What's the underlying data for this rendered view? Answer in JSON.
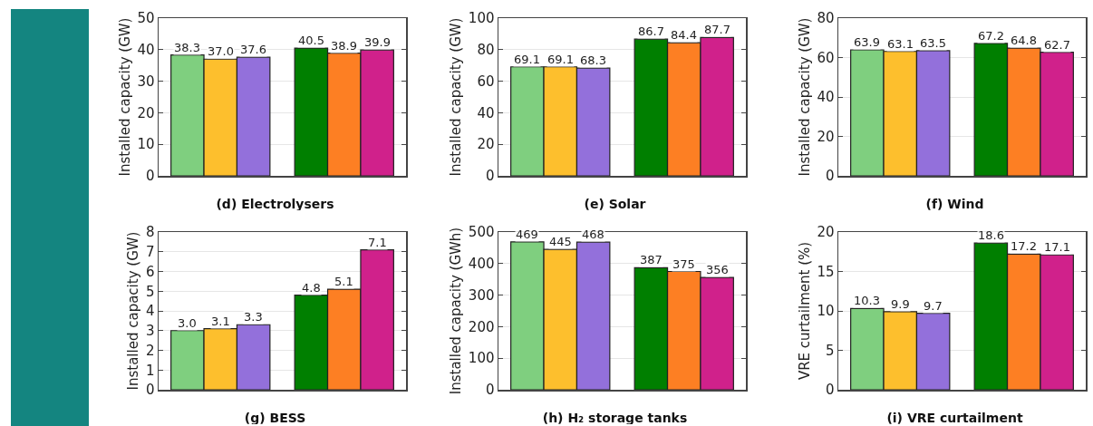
{
  "chart_data": [
    {
      "type": "bar",
      "title": "(d) Electrolysers",
      "ylabel": "Installed capacity (GW)",
      "categories": [
        null,
        null
      ],
      "ylim": [
        0,
        50
      ],
      "yticks": [
        0,
        10,
        20,
        30,
        40,
        50
      ],
      "grid": "y",
      "tick_labels": "y",
      "series": [
        {
          "colors": [
            "#7fcf7f",
            "#007f00"
          ],
          "values": [
            38.3,
            40.5
          ],
          "value_labels": [
            "38.3",
            "40.5"
          ]
        },
        {
          "colors": [
            "#fdbf2d",
            "#fd7f23"
          ],
          "values": [
            37.0,
            38.9
          ],
          "value_labels": [
            "37.0",
            "38.9"
          ]
        },
        {
          "colors": [
            "#9370db",
            "#d0218b"
          ],
          "values": [
            37.6,
            39.9
          ],
          "value_labels": [
            "37.6",
            "39.9"
          ]
        }
      ]
    },
    {
      "type": "bar",
      "title": "(e) Solar",
      "ylabel": "Installed capacity (GW)",
      "categories": [
        null,
        null
      ],
      "ylim": [
        0,
        100
      ],
      "yticks": [
        0,
        20,
        40,
        60,
        80,
        100
      ],
      "grid": "y",
      "tick_labels": "y",
      "series": [
        {
          "colors": [
            "#7fcf7f",
            "#007f00"
          ],
          "values": [
            69.1,
            86.7
          ],
          "value_labels": [
            "69.1",
            "86.7"
          ]
        },
        {
          "colors": [
            "#fdbf2d",
            "#fd7f23"
          ],
          "values": [
            69.1,
            84.4
          ],
          "value_labels": [
            "69.1",
            "84.4"
          ]
        },
        {
          "colors": [
            "#9370db",
            "#d0218b"
          ],
          "values": [
            68.3,
            87.7
          ],
          "value_labels": [
            "68.3",
            "87.7"
          ]
        }
      ]
    },
    {
      "type": "bar",
      "title": "(f) Wind",
      "ylabel": "Installed capacity (GW)",
      "categories": [
        null,
        null
      ],
      "ylim": [
        0,
        80
      ],
      "yticks": [
        0,
        20,
        40,
        60,
        80
      ],
      "grid": "y",
      "tick_labels": "y",
      "series": [
        {
          "colors": [
            "#7fcf7f",
            "#007f00"
          ],
          "values": [
            63.9,
            67.2
          ],
          "value_labels": [
            "63.9",
            "67.2"
          ]
        },
        {
          "colors": [
            "#fdbf2d",
            "#fd7f23"
          ],
          "values": [
            63.1,
            64.8
          ],
          "value_labels": [
            "63.1",
            "64.8"
          ]
        },
        {
          "colors": [
            "#9370db",
            "#d0218b"
          ],
          "values": [
            63.5,
            62.7
          ],
          "value_labels": [
            "63.5",
            "62.7"
          ]
        }
      ]
    },
    {
      "type": "bar",
      "title": "(g) BESS",
      "ylabel": "Installed capacity (GW)",
      "categories": [
        null,
        null
      ],
      "ylim": [
        0,
        8
      ],
      "yticks": [
        0,
        1,
        2,
        3,
        4,
        5,
        6,
        7,
        8
      ],
      "grid": "y",
      "tick_labels": "y",
      "series": [
        {
          "colors": [
            "#7fcf7f",
            "#007f00"
          ],
          "values": [
            3.0,
            4.8
          ],
          "value_labels": [
            "3.0",
            "4.8"
          ]
        },
        {
          "colors": [
            "#fdbf2d",
            "#fd7f23"
          ],
          "values": [
            3.1,
            5.1
          ],
          "value_labels": [
            "3.1",
            "5.1"
          ]
        },
        {
          "colors": [
            "#9370db",
            "#d0218b"
          ],
          "values": [
            3.3,
            7.1
          ],
          "value_labels": [
            "3.3",
            "7.1"
          ]
        }
      ]
    },
    {
      "type": "bar",
      "title": "(h) H₂ storage tanks",
      "ylabel": "Installed capacity (GWh)",
      "categories": [
        null,
        null
      ],
      "ylim": [
        0,
        500
      ],
      "yticks": [
        0,
        100,
        200,
        300,
        400,
        500
      ],
      "grid": "y",
      "tick_labels": "y",
      "series": [
        {
          "colors": [
            "#7fcf7f",
            "#007f00"
          ],
          "values": [
            469,
            387
          ],
          "value_labels": [
            "469",
            "387"
          ]
        },
        {
          "colors": [
            "#fdbf2d",
            "#fd7f23"
          ],
          "values": [
            445,
            375
          ],
          "value_labels": [
            "445",
            "375"
          ]
        },
        {
          "colors": [
            "#9370db",
            "#d0218b"
          ],
          "values": [
            468,
            356
          ],
          "value_labels": [
            "468",
            "356"
          ]
        }
      ]
    },
    {
      "type": "bar",
      "title": "(i) VRE curtailment",
      "ylabel": "VRE curtailment (%)",
      "categories": [
        null,
        null
      ],
      "ylim": [
        0,
        20
      ],
      "yticks": [
        0,
        5,
        10,
        15,
        20
      ],
      "grid": "y",
      "tick_labels": "y",
      "series": [
        {
          "colors": [
            "#7fcf7f",
            "#007f00"
          ],
          "values": [
            10.3,
            18.6
          ],
          "value_labels": [
            "10.3",
            "18.6"
          ]
        },
        {
          "colors": [
            "#fdbf2d",
            "#fd7f23"
          ],
          "values": [
            9.9,
            17.2
          ],
          "value_labels": [
            "9.9",
            "17.2"
          ]
        },
        {
          "colors": [
            "#9370db",
            "#d0218b"
          ],
          "values": [
            9.7,
            17.1
          ],
          "value_labels": [
            "9.7",
            "17.1"
          ]
        }
      ]
    }
  ]
}
